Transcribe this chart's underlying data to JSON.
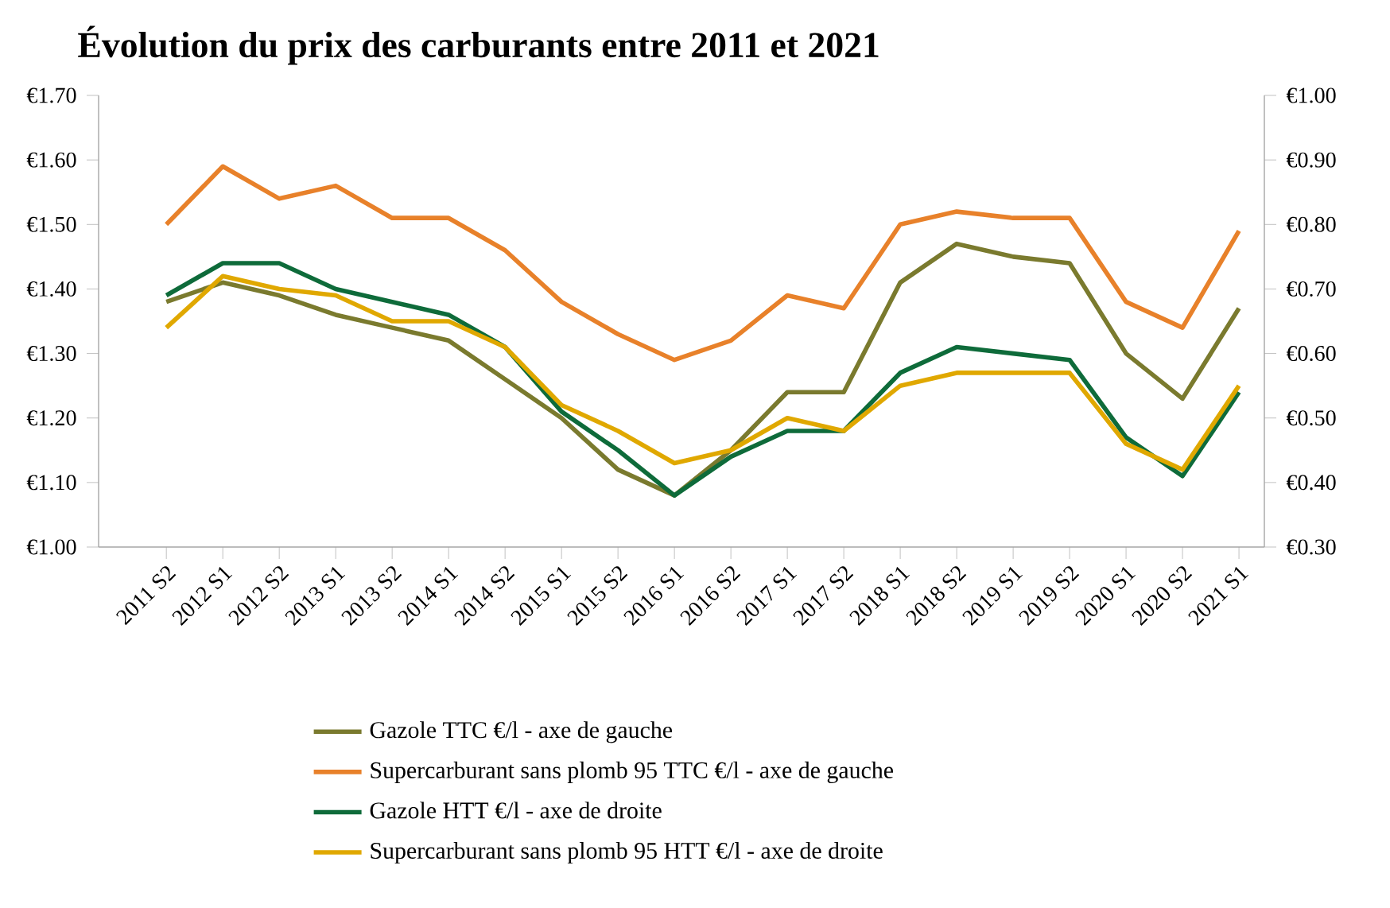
{
  "chart_data": {
    "type": "line",
    "title": "Évolution du prix des carburants entre 2011 et 2021",
    "categories": [
      "2011 S2",
      "2012 S1",
      "2012 S2",
      "2013 S1",
      "2013 S2",
      "2014 S1",
      "2014 S2",
      "2015 S1",
      "2015 S2",
      "2016 S1",
      "2016 S2",
      "2017 S1",
      "2017 S2",
      "2018 S1",
      "2018 S2",
      "2019 S1",
      "2019 S2",
      "2020 S1",
      "2020 S2",
      "2021 S1"
    ],
    "series": [
      {
        "name": "Gazole TTC €/l - axe de gauche",
        "color": "#7a7a2e",
        "values": [
          1.38,
          1.41,
          1.39,
          1.36,
          1.34,
          1.32,
          1.26,
          1.2,
          1.12,
          1.08,
          1.15,
          1.24,
          1.24,
          1.41,
          1.47,
          1.45,
          1.44,
          1.3,
          1.23,
          1.37
        ]
      },
      {
        "name": "Supercarburant sans plomb 95 TTC €/l - axe de gauche",
        "color": "#e8812a",
        "values": [
          1.5,
          1.59,
          1.54,
          1.56,
          1.51,
          1.51,
          1.46,
          1.38,
          1.33,
          1.29,
          1.32,
          1.39,
          1.37,
          1.5,
          1.52,
          1.51,
          1.51,
          1.38,
          1.34,
          1.49
        ]
      },
      {
        "name": "Gazole HTT €/l - axe de droite",
        "color": "#0e6b3a",
        "axis": "y2",
        "values": [
          0.69,
          0.74,
          0.74,
          0.7,
          0.68,
          0.66,
          0.61,
          0.51,
          0.45,
          0.38,
          0.44,
          0.48,
          0.48,
          0.57,
          0.61,
          0.6,
          0.59,
          0.47,
          0.41,
          0.54
        ]
      },
      {
        "name": "Supercarburant sans plomb 95 HTT €/l - axe de droite",
        "color": "#e0a800",
        "axis": "y2",
        "values": [
          0.64,
          0.72,
          0.7,
          0.69,
          0.65,
          0.65,
          0.61,
          0.52,
          0.48,
          0.43,
          0.45,
          0.5,
          0.48,
          0.55,
          0.57,
          0.57,
          0.57,
          0.46,
          0.42,
          0.55
        ]
      }
    ],
    "ylim": [
      1.0,
      1.7
    ],
    "yticks": [
      {
        "value": 1.0,
        "label": "€1.00"
      },
      {
        "value": 1.1,
        "label": "€1.10"
      },
      {
        "value": 1.2,
        "label": "€1.20"
      },
      {
        "value": 1.3,
        "label": "€1.30"
      },
      {
        "value": 1.4,
        "label": "€1.40"
      },
      {
        "value": 1.5,
        "label": "€1.50"
      },
      {
        "value": 1.6,
        "label": "€1.60"
      },
      {
        "value": 1.7,
        "label": "€1.70"
      }
    ],
    "y2lim": [
      0.3,
      1.0
    ],
    "y2ticks": [
      {
        "value": 0.3,
        "label": "€0.30"
      },
      {
        "value": 0.4,
        "label": "€0.40"
      },
      {
        "value": 0.5,
        "label": "€0.50"
      },
      {
        "value": 0.6,
        "label": "€0.60"
      },
      {
        "value": 0.7,
        "label": "€0.70"
      },
      {
        "value": 0.8,
        "label": "€0.80"
      },
      {
        "value": 0.9,
        "label": "€0.90"
      },
      {
        "value": 1.0,
        "label": "€1.00"
      }
    ],
    "grid": false,
    "legend": "bottom",
    "marker": "none",
    "line_style": "solid"
  }
}
